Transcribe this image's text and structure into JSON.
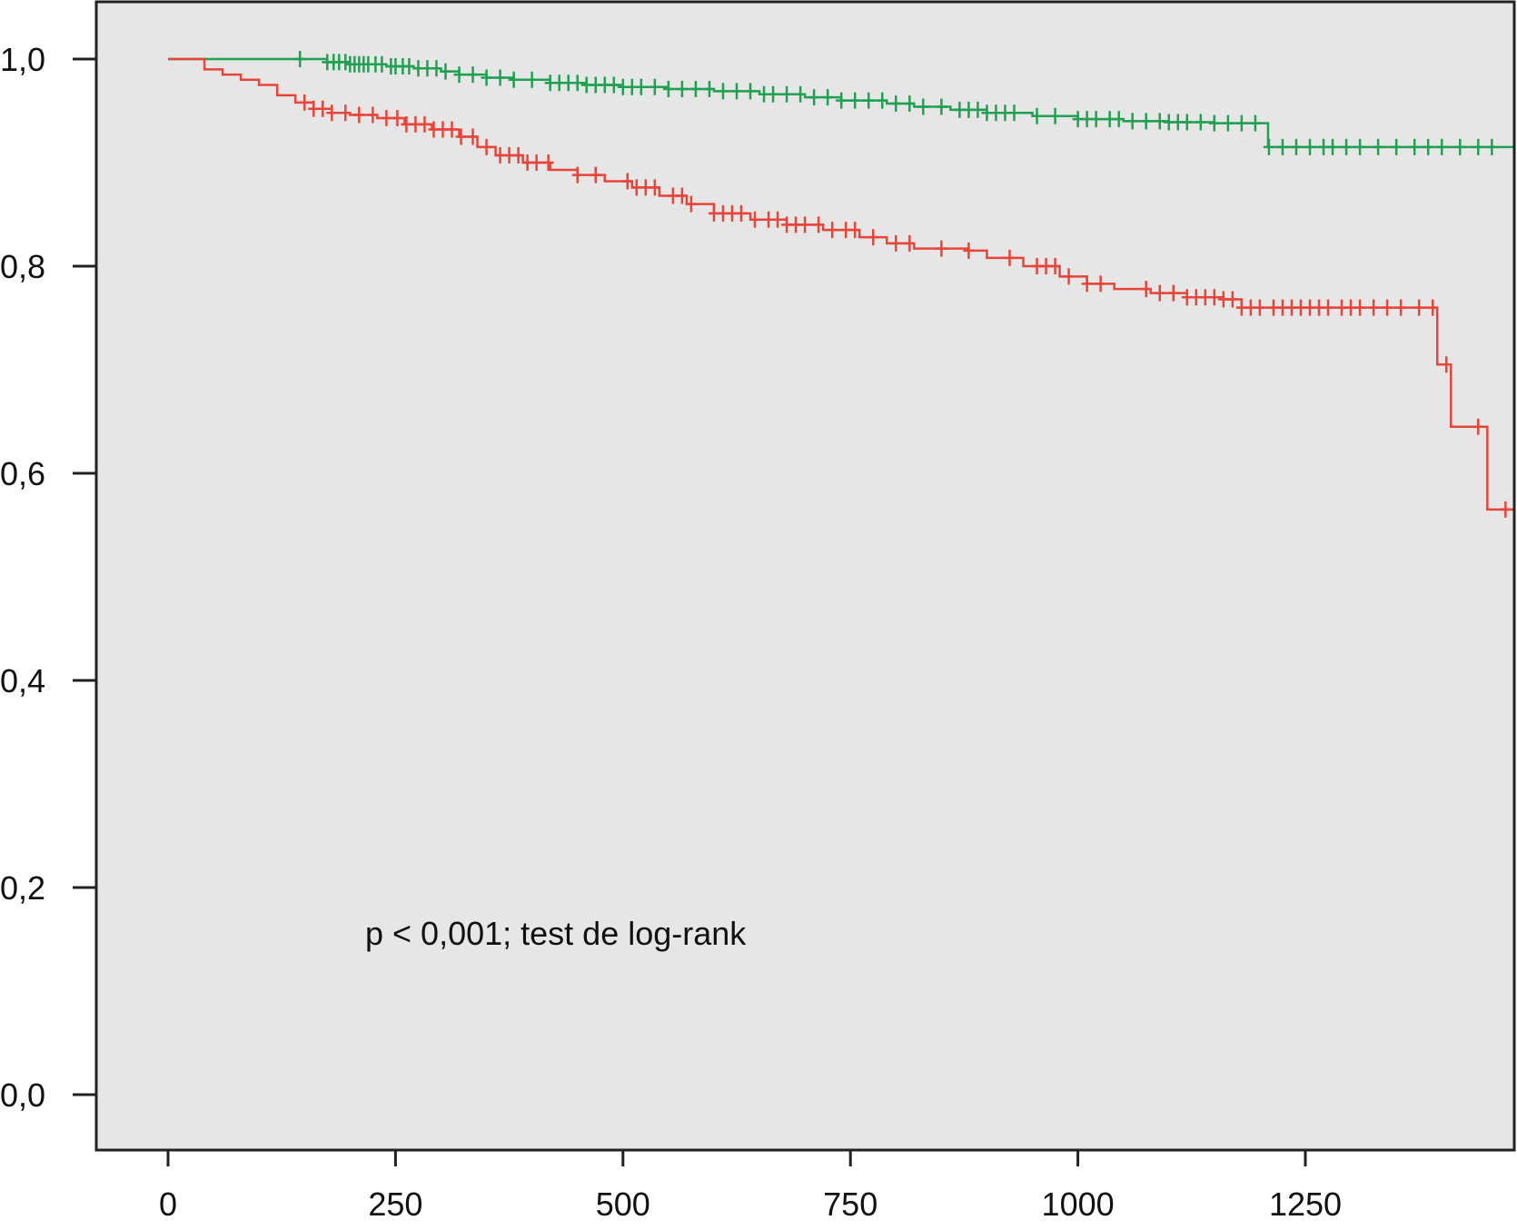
{
  "chart_data": {
    "type": "line",
    "subtype": "kaplan-meier-step",
    "title": "",
    "xlabel": "",
    "ylabel": "",
    "xlim": [
      -80,
      1480
    ],
    "ylim": [
      -0.055,
      1.055
    ],
    "x_ticks": [
      0,
      250,
      500,
      750,
      1000,
      1250
    ],
    "x_tick_labels": [
      "0",
      "250",
      "500",
      "750",
      "1000",
      "1250"
    ],
    "y_ticks": [
      0.0,
      0.2,
      0.4,
      0.6,
      0.8,
      1.0
    ],
    "y_tick_labels": [
      "0,0",
      "0,2",
      "0,4",
      "0,6",
      "0,8",
      "1,0"
    ],
    "grid": false,
    "legend": "none",
    "background_color": "#e6e6e6",
    "axis_color": "#222222",
    "annotation": "p <  0,001; test de log-rank",
    "series": [
      {
        "color": "#20a050",
        "points": [
          [
            0,
            1.0
          ],
          [
            160,
            1.0
          ],
          [
            175,
            0.997
          ],
          [
            200,
            0.995
          ],
          [
            240,
            0.993
          ],
          [
            270,
            0.991
          ],
          [
            300,
            0.988
          ],
          [
            320,
            0.985
          ],
          [
            350,
            0.982
          ],
          [
            380,
            0.98
          ],
          [
            420,
            0.977
          ],
          [
            460,
            0.975
          ],
          [
            500,
            0.973
          ],
          [
            550,
            0.971
          ],
          [
            600,
            0.969
          ],
          [
            650,
            0.966
          ],
          [
            700,
            0.963
          ],
          [
            740,
            0.96
          ],
          [
            790,
            0.957
          ],
          [
            820,
            0.954
          ],
          [
            860,
            0.951
          ],
          [
            900,
            0.948
          ],
          [
            950,
            0.945
          ],
          [
            1000,
            0.942
          ],
          [
            1050,
            0.94
          ],
          [
            1100,
            0.939
          ],
          [
            1150,
            0.938
          ],
          [
            1209,
            0.938
          ],
          [
            1209,
            0.915
          ],
          [
            1480,
            0.915
          ]
        ],
        "censor_x": [
          145,
          175,
          182,
          188,
          195,
          200,
          205,
          210,
          215,
          220,
          228,
          235,
          245,
          250,
          258,
          265,
          275,
          285,
          295,
          305,
          320,
          335,
          350,
          365,
          380,
          400,
          420,
          430,
          440,
          450,
          460,
          470,
          480,
          490,
          500,
          510,
          520,
          535,
          550,
          565,
          580,
          595,
          610,
          625,
          640,
          655,
          665,
          680,
          695,
          710,
          725,
          740,
          755,
          770,
          785,
          800,
          815,
          830,
          850,
          870,
          880,
          890,
          900,
          910,
          920,
          930,
          955,
          975,
          1000,
          1010,
          1020,
          1035,
          1045,
          1060,
          1075,
          1090,
          1100,
          1110,
          1120,
          1135,
          1150,
          1165,
          1180,
          1195,
          1210,
          1225,
          1240,
          1255,
          1270,
          1280,
          1295,
          1310,
          1330,
          1350,
          1370,
          1385,
          1400,
          1420,
          1440,
          1455
        ]
      },
      {
        "color": "#e8453a",
        "points": [
          [
            0,
            1.0
          ],
          [
            20,
            1.0
          ],
          [
            40,
            0.99
          ],
          [
            60,
            0.985
          ],
          [
            80,
            0.98
          ],
          [
            100,
            0.975
          ],
          [
            120,
            0.965
          ],
          [
            140,
            0.958
          ],
          [
            160,
            0.952
          ],
          [
            180,
            0.948
          ],
          [
            200,
            0.946
          ],
          [
            230,
            0.943
          ],
          [
            260,
            0.937
          ],
          [
            290,
            0.932
          ],
          [
            320,
            0.925
          ],
          [
            340,
            0.915
          ],
          [
            360,
            0.907
          ],
          [
            390,
            0.9
          ],
          [
            420,
            0.893
          ],
          [
            450,
            0.888
          ],
          [
            480,
            0.882
          ],
          [
            510,
            0.876
          ],
          [
            540,
            0.868
          ],
          [
            570,
            0.86
          ],
          [
            600,
            0.851
          ],
          [
            640,
            0.845
          ],
          [
            680,
            0.84
          ],
          [
            720,
            0.835
          ],
          [
            760,
            0.828
          ],
          [
            790,
            0.822
          ],
          [
            820,
            0.817
          ],
          [
            880,
            0.815
          ],
          [
            900,
            0.808
          ],
          [
            940,
            0.8
          ],
          [
            980,
            0.79
          ],
          [
            1010,
            0.783
          ],
          [
            1040,
            0.778
          ],
          [
            1080,
            0.774
          ],
          [
            1120,
            0.77
          ],
          [
            1160,
            0.768
          ],
          [
            1180,
            0.76
          ],
          [
            1395,
            0.76
          ],
          [
            1395,
            0.705
          ],
          [
            1410,
            0.705
          ],
          [
            1410,
            0.645
          ],
          [
            1450,
            0.645
          ],
          [
            1450,
            0.565
          ],
          [
            1480,
            0.565
          ]
        ],
        "censor_x": [
          150,
          160,
          170,
          180,
          195,
          210,
          225,
          240,
          252,
          262,
          272,
          282,
          292,
          302,
          312,
          322,
          335,
          350,
          365,
          375,
          385,
          395,
          405,
          418,
          450,
          470,
          505,
          515,
          525,
          535,
          555,
          565,
          575,
          600,
          610,
          620,
          630,
          645,
          660,
          670,
          680,
          690,
          700,
          715,
          730,
          745,
          755,
          775,
          800,
          815,
          850,
          880,
          925,
          955,
          965,
          975,
          990,
          1010,
          1025,
          1075,
          1090,
          1105,
          1120,
          1130,
          1140,
          1150,
          1160,
          1170,
          1180,
          1190,
          1200,
          1215,
          1225,
          1235,
          1245,
          1255,
          1265,
          1275,
          1290,
          1300,
          1310,
          1325,
          1340,
          1355,
          1375,
          1390,
          1405,
          1440,
          1470
        ]
      }
    ]
  }
}
